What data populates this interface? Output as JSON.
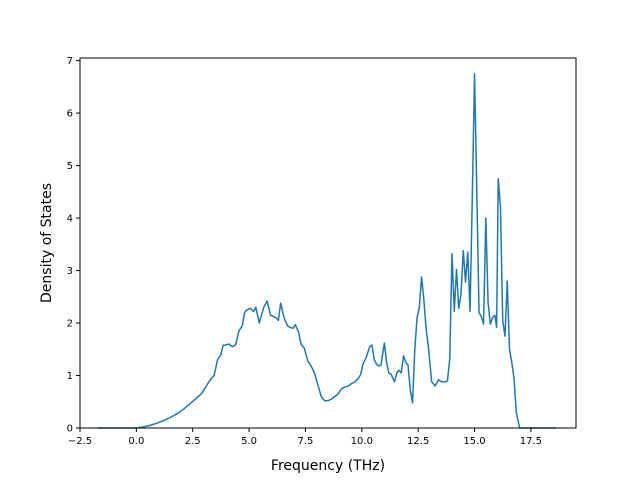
{
  "chart_data": {
    "type": "line",
    "title": "",
    "xlabel": "Frequency (THz)",
    "ylabel": "Density of States",
    "xlim": [
      -2.5,
      19.5
    ],
    "ylim": [
      0,
      7.05
    ],
    "grid": false,
    "legend": "none",
    "x_ticks": [
      -2.5,
      0.0,
      2.5,
      5.0,
      7.5,
      10.0,
      12.5,
      15.0,
      17.5
    ],
    "x_tick_labels": [
      "−2.5",
      "0.0",
      "2.5",
      "5.0",
      "7.5",
      "10.0",
      "12.5",
      "15.0",
      "17.5"
    ],
    "y_ticks": [
      0,
      1,
      2,
      3,
      4,
      5,
      6,
      7
    ],
    "y_tick_labels": [
      "0",
      "1",
      "2",
      "3",
      "4",
      "5",
      "6",
      "7"
    ],
    "series": [
      {
        "color": "#1f77b4",
        "x": [
          -1.7,
          -1.0,
          -0.5,
          0.0,
          0.3,
          0.6,
          0.9,
          1.2,
          1.5,
          1.8,
          2.1,
          2.4,
          2.7,
          2.9,
          3.1,
          3.3,
          3.45,
          3.6,
          3.75,
          3.85,
          3.95,
          4.1,
          4.25,
          4.4,
          4.55,
          4.7,
          4.8,
          4.9,
          5.05,
          5.2,
          5.3,
          5.45,
          5.55,
          5.65,
          5.8,
          5.95,
          6.1,
          6.2,
          6.3,
          6.4,
          6.55,
          6.7,
          6.8,
          6.95,
          7.05,
          7.2,
          7.3,
          7.45,
          7.6,
          7.75,
          7.9,
          8.05,
          8.2,
          8.35,
          8.5,
          8.65,
          8.8,
          8.95,
          9.1,
          9.25,
          9.4,
          9.55,
          9.7,
          9.85,
          9.95,
          10.05,
          10.2,
          10.35,
          10.45,
          10.55,
          10.65,
          10.75,
          10.85,
          11.0,
          11.1,
          11.2,
          11.3,
          11.45,
          11.55,
          11.65,
          11.75,
          11.85,
          11.95,
          12.05,
          12.15,
          12.25,
          12.35,
          12.45,
          12.55,
          12.65,
          12.75,
          12.85,
          12.95,
          13.1,
          13.25,
          13.4,
          13.55,
          13.7,
          13.8,
          13.9,
          14.0,
          14.1,
          14.2,
          14.3,
          14.4,
          14.5,
          14.6,
          14.7,
          14.8,
          14.9,
          15.0,
          15.1,
          15.2,
          15.3,
          15.4,
          15.5,
          15.6,
          15.7,
          15.8,
          15.9,
          15.98,
          16.05,
          16.15,
          16.25,
          16.35,
          16.45,
          16.55,
          16.65,
          16.75,
          16.85,
          17.0,
          17.5,
          18.0,
          18.6
        ],
        "y": [
          0,
          0,
          0,
          0,
          0.02,
          0.05,
          0.09,
          0.14,
          0.2,
          0.27,
          0.36,
          0.47,
          0.58,
          0.66,
          0.8,
          0.93,
          1.0,
          1.3,
          1.4,
          1.58,
          1.58,
          1.6,
          1.55,
          1.58,
          1.85,
          1.95,
          2.2,
          2.25,
          2.28,
          2.22,
          2.3,
          2.0,
          2.15,
          2.3,
          2.42,
          2.15,
          2.12,
          2.1,
          2.05,
          2.38,
          2.1,
          1.95,
          1.92,
          1.9,
          1.97,
          1.82,
          1.6,
          1.52,
          1.28,
          1.18,
          1.05,
          0.82,
          0.6,
          0.52,
          0.52,
          0.55,
          0.6,
          0.65,
          0.75,
          0.78,
          0.8,
          0.85,
          0.88,
          0.95,
          1.02,
          1.22,
          1.35,
          1.55,
          1.58,
          1.3,
          1.22,
          1.18,
          1.2,
          1.62,
          1.25,
          1.05,
          1.02,
          0.88,
          1.05,
          1.1,
          1.05,
          1.38,
          1.25,
          1.2,
          0.72,
          0.48,
          1.5,
          2.1,
          2.3,
          2.88,
          2.45,
          1.9,
          1.55,
          0.88,
          0.8,
          0.92,
          0.88,
          0.88,
          0.9,
          1.32,
          3.32,
          2.22,
          3.02,
          2.28,
          2.55,
          3.38,
          2.78,
          3.35,
          2.22,
          4.4,
          6.75,
          4.5,
          2.2,
          2.12,
          1.98,
          4.0,
          2.4,
          1.98,
          2.1,
          2.15,
          1.92,
          4.75,
          4.2,
          2.05,
          1.75,
          2.8,
          1.5,
          1.25,
          0.95,
          0.3,
          0,
          0,
          0,
          0
        ]
      }
    ]
  }
}
